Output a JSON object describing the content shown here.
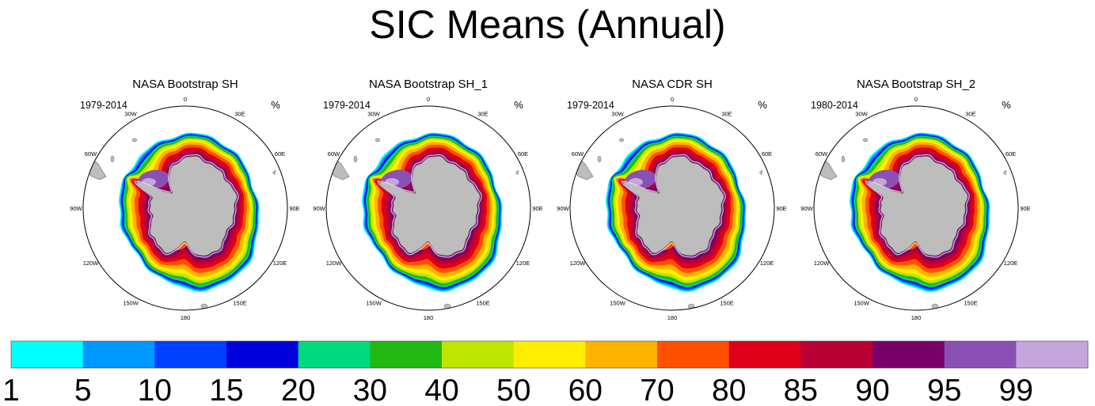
{
  "chart_data": {
    "type": "heatmap",
    "title": "SIC Means (Annual)",
    "units": "%",
    "projection": "south-polar-stereographic",
    "longitude_labels": [
      "0",
      "30E",
      "60E",
      "90E",
      "120E",
      "150E",
      "180",
      "150W",
      "120W",
      "90W",
      "60W",
      "30W"
    ],
    "panels": [
      {
        "title": "NASA Bootstrap SH",
        "period": "1979-2014"
      },
      {
        "title": "NASA Bootstrap SH_1",
        "period": "1979-2014"
      },
      {
        "title": "NASA CDR SH",
        "period": "1979-2014"
      },
      {
        "title": "NASA Bootstrap SH_2",
        "period": "1980-2014"
      }
    ],
    "colorbar": {
      "levels": [
        1,
        5,
        10,
        15,
        20,
        30,
        40,
        50,
        60,
        70,
        80,
        85,
        90,
        95,
        99
      ],
      "colors": [
        "#00ffff",
        "#0099ff",
        "#0040ff",
        "#0000dd",
        "#00d97f",
        "#22b812",
        "#bfe600",
        "#ffee00",
        "#ffb300",
        "#ff5000",
        "#e00018",
        "#b80034",
        "#7a0069",
        "#8a50b4",
        "#c4a6da"
      ]
    },
    "colors": {
      "land": "#bdbdbd",
      "coast": "#666666",
      "background": "#ffffff"
    }
  }
}
